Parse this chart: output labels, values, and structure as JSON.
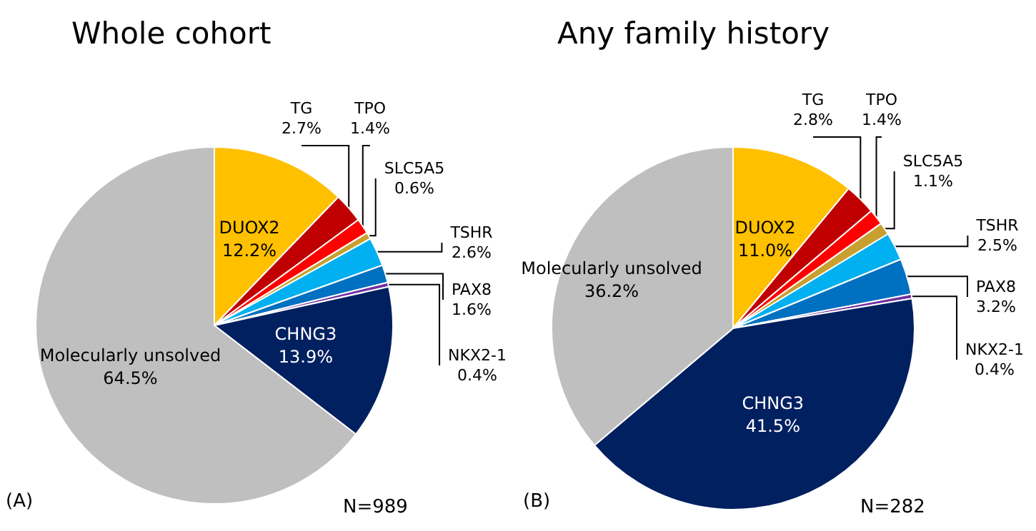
{
  "chart_data": [
    {
      "type": "pie",
      "title": "Whole cohort",
      "categories": [
        "DUOX2",
        "TG",
        "TPO",
        "SLC5A5",
        "TSHR",
        "PAX8",
        "NKX2-1",
        "CHNG3",
        "Molecularly unsolved"
      ],
      "values": [
        12.2,
        2.7,
        1.4,
        0.6,
        2.6,
        1.6,
        0.4,
        13.9,
        64.5
      ],
      "value_labels": [
        "12.2%",
        "2.7%",
        "1.4%",
        "0.6%",
        "2.6%",
        "1.6%",
        "0.4%",
        "13.9%",
        "64.5%"
      ],
      "colors": [
        "#ffc000",
        "#c00000",
        "#ff0000",
        "#c8a030",
        "#00b0f0",
        "#0070c0",
        "#7030a0",
        "#002060",
        "#bfbfbf"
      ],
      "annotations": [
        "(A)",
        "N=989"
      ]
    },
    {
      "type": "pie",
      "title": "Any family history",
      "categories": [
        "DUOX2",
        "TG",
        "TPO",
        "SLC5A5",
        "TSHR",
        "PAX8",
        "NKX2-1",
        "CHNG3",
        "Molecularly unsolved"
      ],
      "values": [
        11.0,
        2.8,
        1.4,
        1.1,
        2.5,
        3.2,
        0.4,
        41.5,
        36.2
      ],
      "value_labels": [
        "11.0%",
        "2.8%",
        "1.4%",
        "1.1%",
        "2.5%",
        "3.2%",
        "0.4%",
        "41.5%",
        "36.2%"
      ],
      "colors": [
        "#ffc000",
        "#c00000",
        "#ff0000",
        "#c8a030",
        "#00b0f0",
        "#0070c0",
        "#7030a0",
        "#002060",
        "#bfbfbf"
      ],
      "annotations": [
        "(B)",
        "N=282"
      ]
    }
  ]
}
